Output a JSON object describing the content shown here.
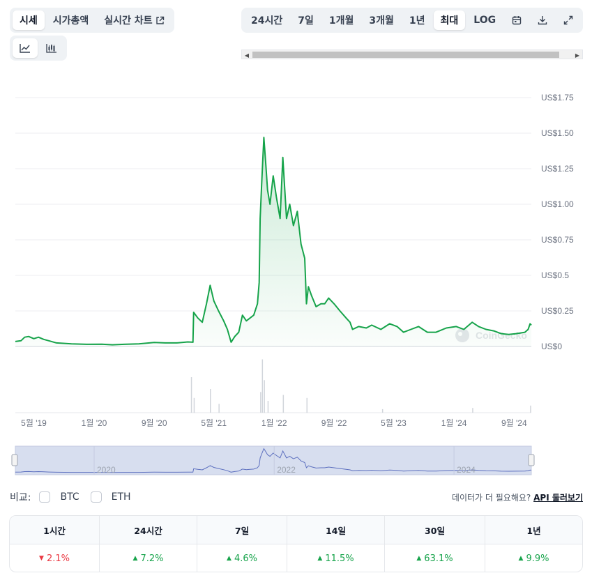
{
  "tabs": [
    {
      "label": "시세",
      "active": true
    },
    {
      "label": "시가총액",
      "active": false
    },
    {
      "label": "실시간 차트",
      "active": false,
      "external": true
    }
  ],
  "chart_types": [
    {
      "icon": "line-chart-icon",
      "active": true
    },
    {
      "icon": "candlestick-chart-icon",
      "active": false
    }
  ],
  "ranges": [
    {
      "label": "24시간",
      "active": false
    },
    {
      "label": "7일",
      "active": false
    },
    {
      "label": "1개월",
      "active": false
    },
    {
      "label": "3개월",
      "active": false
    },
    {
      "label": "1년",
      "active": false
    },
    {
      "label": "최대",
      "active": true
    },
    {
      "label": "LOG",
      "active": false
    }
  ],
  "range_icons": [
    "calendar-icon",
    "download-icon",
    "expand-icon"
  ],
  "chart_data": {
    "type": "line",
    "title": "",
    "xlabel": "",
    "ylabel": "",
    "y_ticks": [
      "US$1.75",
      "US$1.50",
      "US$1.25",
      "US$1.00",
      "US$0.75",
      "US$0.5",
      "US$0.25",
      "US$0"
    ],
    "ylim": [
      0,
      1.75
    ],
    "x_ticks": [
      "5월 '19",
      "1월 '20",
      "9월 '20",
      "5월 '21",
      "1월 '22",
      "9월 '22",
      "5월 '23",
      "1월 '24",
      "9월 '24"
    ],
    "xlim": [
      "2019-02-15",
      "2024-11-10"
    ],
    "series": [
      {
        "color": "#16a34a",
        "points": [
          [
            "2019-02-15",
            0.035
          ],
          [
            "2019-03-10",
            0.04
          ],
          [
            "2019-03-25",
            0.065
          ],
          [
            "2019-04-10",
            0.07
          ],
          [
            "2019-05-01",
            0.055
          ],
          [
            "2019-05-20",
            0.065
          ],
          [
            "2019-06-10",
            0.05
          ],
          [
            "2019-07-01",
            0.04
          ],
          [
            "2019-08-01",
            0.025
          ],
          [
            "2019-10-01",
            0.018
          ],
          [
            "2019-12-01",
            0.015
          ],
          [
            "2020-02-01",
            0.016
          ],
          [
            "2020-03-15",
            0.012
          ],
          [
            "2020-05-01",
            0.015
          ],
          [
            "2020-07-01",
            0.018
          ],
          [
            "2020-09-01",
            0.028
          ],
          [
            "2020-10-15",
            0.025
          ],
          [
            "2020-12-01",
            0.025
          ],
          [
            "2021-01-15",
            0.032
          ],
          [
            "2021-02-05",
            0.03
          ],
          [
            "2021-02-08",
            0.24
          ],
          [
            "2021-02-25",
            0.2
          ],
          [
            "2021-03-15",
            0.17
          ],
          [
            "2021-04-01",
            0.3
          ],
          [
            "2021-04-16",
            0.43
          ],
          [
            "2021-05-01",
            0.32
          ],
          [
            "2021-05-20",
            0.25
          ],
          [
            "2021-06-10",
            0.18
          ],
          [
            "2021-06-25",
            0.12
          ],
          [
            "2021-07-10",
            0.03
          ],
          [
            "2021-07-25",
            0.07
          ],
          [
            "2021-08-10",
            0.1
          ],
          [
            "2021-08-25",
            0.22
          ],
          [
            "2021-09-10",
            0.18
          ],
          [
            "2021-09-25",
            0.2
          ],
          [
            "2021-10-10",
            0.22
          ],
          [
            "2021-10-25",
            0.3
          ],
          [
            "2021-11-01",
            0.45
          ],
          [
            "2021-11-05",
            0.9
          ],
          [
            "2021-11-12",
            1.18
          ],
          [
            "2021-11-20",
            1.47
          ],
          [
            "2021-11-28",
            1.28
          ],
          [
            "2021-12-05",
            1.1
          ],
          [
            "2021-12-15",
            1.0
          ],
          [
            "2021-12-28",
            1.2
          ],
          [
            "2022-01-10",
            1.05
          ],
          [
            "2022-01-25",
            0.9
          ],
          [
            "2022-02-05",
            1.33
          ],
          [
            "2022-02-20",
            0.9
          ],
          [
            "2022-03-05",
            1.0
          ],
          [
            "2022-03-20",
            0.85
          ],
          [
            "2022-04-05",
            0.95
          ],
          [
            "2022-04-20",
            0.72
          ],
          [
            "2022-05-05",
            0.62
          ],
          [
            "2022-05-12",
            0.3
          ],
          [
            "2022-05-20",
            0.42
          ],
          [
            "2022-06-01",
            0.36
          ],
          [
            "2022-06-20",
            0.28
          ],
          [
            "2022-07-10",
            0.3
          ],
          [
            "2022-07-25",
            0.3
          ],
          [
            "2022-08-10",
            0.34
          ],
          [
            "2022-09-01",
            0.3
          ],
          [
            "2022-09-25",
            0.25
          ],
          [
            "2022-10-20",
            0.2
          ],
          [
            "2022-11-05",
            0.17
          ],
          [
            "2022-11-15",
            0.12
          ],
          [
            "2022-12-10",
            0.14
          ],
          [
            "2023-01-10",
            0.13
          ],
          [
            "2023-02-01",
            0.15
          ],
          [
            "2023-03-10",
            0.12
          ],
          [
            "2023-04-15",
            0.16
          ],
          [
            "2023-05-15",
            0.14
          ],
          [
            "2023-06-10",
            0.1
          ],
          [
            "2023-07-10",
            0.12
          ],
          [
            "2023-08-10",
            0.14
          ],
          [
            "2023-09-15",
            0.1
          ],
          [
            "2023-10-20",
            0.1
          ],
          [
            "2023-12-01",
            0.13
          ],
          [
            "2024-01-10",
            0.14
          ],
          [
            "2024-02-10",
            0.12
          ],
          [
            "2024-03-15",
            0.17
          ],
          [
            "2024-04-10",
            0.14
          ],
          [
            "2024-05-10",
            0.12
          ],
          [
            "2024-06-10",
            0.11
          ],
          [
            "2024-07-10",
            0.09
          ],
          [
            "2024-08-10",
            0.085
          ],
          [
            "2024-09-10",
            0.09
          ],
          [
            "2024-10-15",
            0.1
          ],
          [
            "2024-10-28",
            0.12
          ],
          [
            "2024-11-05",
            0.16
          ],
          [
            "2024-11-10",
            0.15
          ]
        ]
      }
    ],
    "volume": [
      [
        "2021-01-28",
        0.6
      ],
      [
        "2021-02-08",
        0.25
      ],
      [
        "2021-04-15",
        0.4
      ],
      [
        "2021-05-20",
        0.15
      ],
      [
        "2021-11-05",
        0.35
      ],
      [
        "2021-11-12",
        0.9
      ],
      [
        "2021-11-20",
        0.55
      ],
      [
        "2021-12-05",
        0.2
      ],
      [
        "2022-02-05",
        0.3
      ],
      [
        "2022-05-12",
        0.25
      ],
      [
        "2023-03-15",
        0.06
      ],
      [
        "2024-03-15",
        0.08
      ],
      [
        "2024-11-05",
        0.12
      ]
    ],
    "navigator_ticks": [
      "2020",
      "2022",
      "2024"
    ],
    "grid": true,
    "watermark": "CoinGecko"
  },
  "compare": {
    "label": "비교:",
    "options": [
      "BTC",
      "ETH"
    ]
  },
  "api_note": {
    "text": "데이터가 더 필요해요?",
    "link": "API 둘러보기"
  },
  "performance": [
    {
      "period": "1시간",
      "value": "2.1%",
      "direction": "down"
    },
    {
      "period": "24시간",
      "value": "7.2%",
      "direction": "up"
    },
    {
      "period": "7일",
      "value": "4.6%",
      "direction": "up"
    },
    {
      "period": "14일",
      "value": "11.5%",
      "direction": "up"
    },
    {
      "period": "30일",
      "value": "63.1%",
      "direction": "up"
    },
    {
      "period": "1년",
      "value": "9.9%",
      "direction": "up"
    }
  ]
}
